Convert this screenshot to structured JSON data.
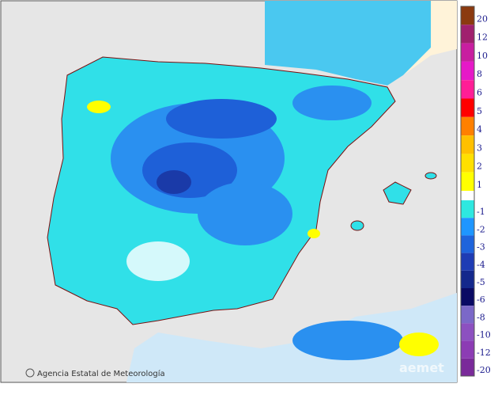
{
  "map": {
    "credit": "Agencia Estatal de Meteorología",
    "watermark": "aemet"
  },
  "legend": {
    "upper": [
      {
        "label": "20",
        "color": "#8b3a0f"
      },
      {
        "label": "12",
        "color": "#a0206e"
      },
      {
        "label": "10",
        "color": "#c81ea0"
      },
      {
        "label": "8",
        "color": "#e619c8"
      },
      {
        "label": "6",
        "color": "#ff1e96"
      },
      {
        "label": "5",
        "color": "#ff0000"
      },
      {
        "label": "4",
        "color": "#ff8000"
      },
      {
        "label": "3",
        "color": "#ffc000"
      },
      {
        "label": "2",
        "color": "#ffe000"
      },
      {
        "label": "1",
        "color": "#ffff00"
      }
    ],
    "lower": [
      {
        "label": "-1",
        "color": "#2ee8e0"
      },
      {
        "label": "-2",
        "color": "#1e96ff"
      },
      {
        "label": "-3",
        "color": "#1e64dc"
      },
      {
        "label": "-4",
        "color": "#1e3cb4"
      },
      {
        "label": "-5",
        "color": "#14288c"
      },
      {
        "label": "-6",
        "color": "#0a0a64"
      },
      {
        "label": "-8",
        "color": "#7b68c8"
      },
      {
        "label": "-10",
        "color": "#8c50c0"
      },
      {
        "label": "-12",
        "color": "#8c3cb4"
      },
      {
        "label": "-20",
        "color": "#7a2a9a"
      }
    ]
  }
}
